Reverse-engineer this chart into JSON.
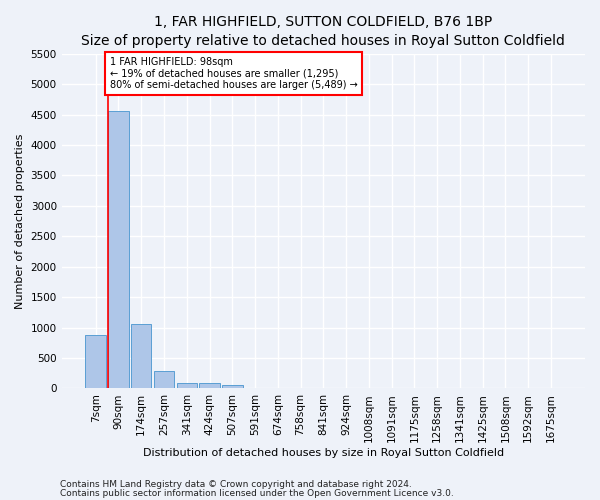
{
  "title": "1, FAR HIGHFIELD, SUTTON COLDFIELD, B76 1BP",
  "subtitle": "Size of property relative to detached houses in Royal Sutton Coldfield",
  "xlabel": "Distribution of detached houses by size in Royal Sutton Coldfield",
  "ylabel": "Number of detached properties",
  "footnote1": "Contains HM Land Registry data © Crown copyright and database right 2024.",
  "footnote2": "Contains public sector information licensed under the Open Government Licence v3.0.",
  "bar_labels": [
    "7sqm",
    "90sqm",
    "174sqm",
    "257sqm",
    "341sqm",
    "424sqm",
    "507sqm",
    "591sqm",
    "674sqm",
    "758sqm",
    "841sqm",
    "924sqm",
    "1008sqm",
    "1091sqm",
    "1175sqm",
    "1258sqm",
    "1341sqm",
    "1425sqm",
    "1508sqm",
    "1592sqm",
    "1675sqm"
  ],
  "bar_values": [
    880,
    4560,
    1060,
    280,
    95,
    80,
    55,
    0,
    0,
    0,
    0,
    0,
    0,
    0,
    0,
    0,
    0,
    0,
    0,
    0,
    0
  ],
  "bar_color": "#aec6e8",
  "bar_edge_color": "#5a9fd4",
  "annotation_text": "1 FAR HIGHFIELD: 98sqm\n← 19% of detached houses are smaller (1,295)\n80% of semi-detached houses are larger (5,489) →",
  "annotation_box_color": "white",
  "annotation_box_edge_color": "red",
  "property_line_color": "red",
  "ylim": [
    0,
    5500
  ],
  "yticks": [
    0,
    500,
    1000,
    1500,
    2000,
    2500,
    3000,
    3500,
    4000,
    4500,
    5000,
    5500
  ],
  "background_color": "#eef2f9",
  "grid_color": "white",
  "title_fontsize": 10,
  "label_fontsize": 8,
  "tick_fontsize": 7.5,
  "footnote_fontsize": 6.5
}
